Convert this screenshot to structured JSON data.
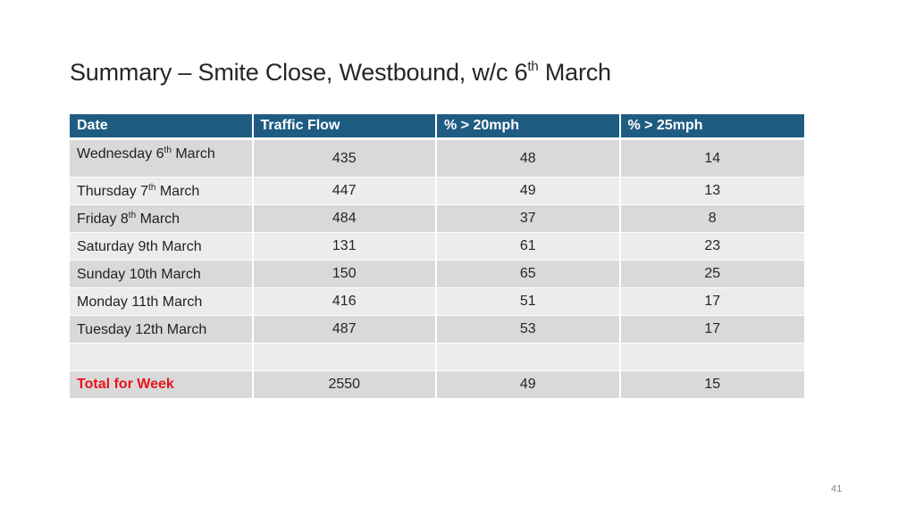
{
  "slide": {
    "title": {
      "prefix": "Summary –  Smite Close, Westbound, w/c 6",
      "sup": "th",
      "suffix": " March"
    },
    "page_number": "41"
  },
  "table": {
    "headers": [
      "Date",
      "Traffic Flow",
      "% > 20mph",
      "% > 25mph"
    ],
    "rows": [
      {
        "date_pre": "Wednesday 6",
        "date_sup": "th",
        "date_post": " March",
        "flow": "435",
        "pct20": "48",
        "pct25": "14"
      },
      {
        "date_pre": "Thursday 7",
        "date_sup": "th",
        "date_post": " March",
        "flow": "447",
        "pct20": "49",
        "pct25": "13"
      },
      {
        "date_pre": "Friday 8",
        "date_sup": "th",
        "date_post": " March",
        "flow": "484",
        "pct20": "37",
        "pct25": "8"
      },
      {
        "date_pre": "Saturday 9th March",
        "date_sup": "",
        "date_post": "",
        "flow": "131",
        "pct20": "61",
        "pct25": "23"
      },
      {
        "date_pre": "Sunday 10th March",
        "date_sup": "",
        "date_post": "",
        "flow": "150",
        "pct20": "65",
        "pct25": "25"
      },
      {
        "date_pre": "Monday 11th March",
        "date_sup": "",
        "date_post": "",
        "flow": "416",
        "pct20": "51",
        "pct25": "17"
      },
      {
        "date_pre": "Tuesday 12th March",
        "date_sup": "",
        "date_post": "",
        "flow": "487",
        "pct20": "53",
        "pct25": "17"
      }
    ],
    "total": {
      "label": "Total for Week",
      "flow": "2550",
      "pct20": "49",
      "pct25": "15"
    }
  }
}
